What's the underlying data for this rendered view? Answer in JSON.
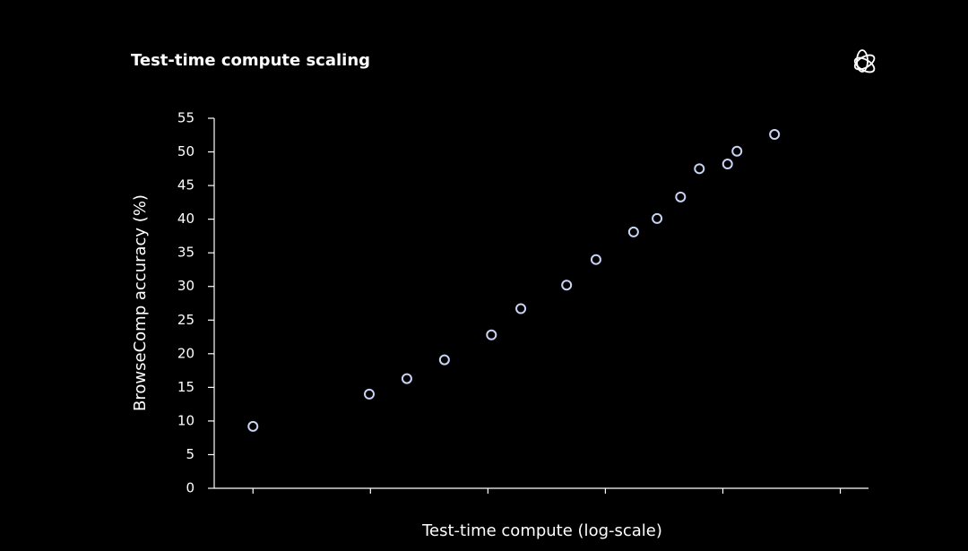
{
  "chart_data": {
    "type": "scatter",
    "title": "Test-time compute scaling",
    "x_label": "Test-time compute (log-scale)",
    "y_label": "BrowseComp accuracy (%)",
    "color": "#c9d3f5",
    "x": [
      0.0,
      0.99,
      1.31,
      1.63,
      2.03,
      2.28,
      2.67,
      2.92,
      3.24,
      3.44,
      3.64,
      3.8,
      4.04,
      4.12,
      4.44
    ],
    "values": [
      9.2,
      14.0,
      16.3,
      19.1,
      22.8,
      26.7,
      30.2,
      34.0,
      38.1,
      40.1,
      43.3,
      47.5,
      48.2,
      50.1,
      52.6
    ],
    "xlim": [
      -0.33,
      5.24
    ],
    "xticks": [
      0,
      1,
      2,
      3,
      4,
      5
    ],
    "ylim": [
      0,
      55
    ],
    "yticks": [
      0,
      5,
      10,
      15,
      20,
      25,
      30,
      35,
      40,
      45,
      50,
      55
    ]
  }
}
